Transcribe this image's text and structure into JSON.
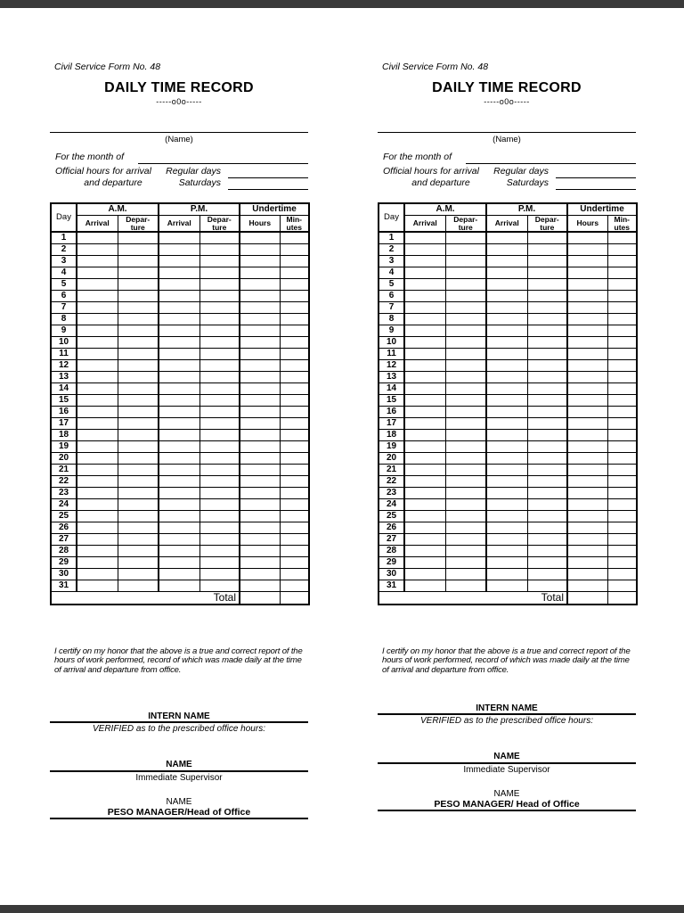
{
  "page": {
    "chrome_color": "#3a3a3a"
  },
  "form": {
    "form_no": "Civil Service Form No. 48",
    "title": "DAILY TIME RECORD",
    "separator": "-----o0o-----",
    "name_label": "(Name)",
    "month_label": "For the month of",
    "official_hours_line1": "Official hours for arrival",
    "official_hours_line2": "and departure",
    "regular_days_label": "Regular days",
    "saturdays_label": "Saturdays",
    "table": {
      "day_header": "Day",
      "am_header": "A.M.",
      "pm_header": "P.M.",
      "undertime_header": "Undertime",
      "arrival_header": "Arrival",
      "departure_header": "Depar-\nture",
      "hours_header": "Hours",
      "minutes_header": "Min-\nutes",
      "days": [
        "1",
        "2",
        "3",
        "4",
        "5",
        "6",
        "7",
        "8",
        "9",
        "10",
        "11",
        "12",
        "13",
        "14",
        "15",
        "16",
        "17",
        "18",
        "19",
        "20",
        "21",
        "22",
        "23",
        "24",
        "25",
        "26",
        "27",
        "28",
        "29",
        "30",
        "31"
      ],
      "total_label": "Total"
    },
    "certification": "I certify on my honor that the above is a true and correct report of the\nhours of work performed, record of which was made daily at the time\nof arrival and departure from office.",
    "sign1_name": "INTERN NAME",
    "sign1_caption": "VERIFIED as to the prescribed office hours:",
    "sign2_name": "NAME",
    "sign2_caption": "Immediate Supervisor",
    "sign3_name": "NAME"
  },
  "copies": [
    {
      "peso_label": "PESO MANAGER/Head of Office"
    },
    {
      "peso_label": "PESO MANAGER/ Head of Office"
    }
  ]
}
